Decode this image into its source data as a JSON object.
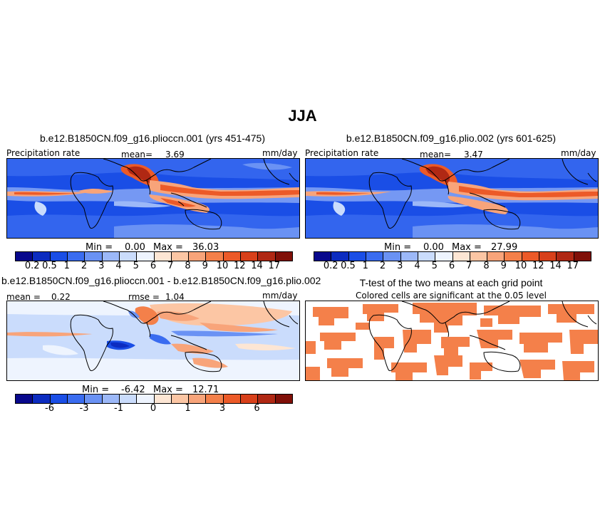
{
  "figure": {
    "title": "JJA",
    "units": "mm/day",
    "variable": "Precipitation rate"
  },
  "panels": [
    {
      "id": "case1",
      "title": "b.e12.B1850CN.f09_g16.plioccn.001 (yrs 451-475)",
      "left_label": "Precipitation rate",
      "mean_label": "mean=",
      "mean_value": "3.69",
      "units": "mm/day",
      "stats": {
        "min_label": "Min =",
        "min_value": "0.00",
        "max_label": "Max =",
        "max_value": "36.03"
      }
    },
    {
      "id": "case2",
      "title": "b.e12.B1850CN.f09_g16.plio.002 (yrs 601-625)",
      "left_label": "Precipitation rate",
      "mean_label": "mean=",
      "mean_value": "3.47",
      "units": "mm/day",
      "stats": {
        "min_label": "Min =",
        "min_value": "0.00",
        "max_label": "Max =",
        "max_value": "27.99"
      }
    },
    {
      "id": "diff",
      "title": "b.e12.B1850CN.f09_g16.plioccn.001 - b.e12.B1850CN.f09_g16.plio.002",
      "mean_label": "mean =",
      "mean_value": "0.22",
      "rmse_label": "rmse =",
      "rmse_value": "1.04",
      "units": "mm/day",
      "stats": {
        "min_label": "Min =",
        "min_value": "-6.42",
        "max_label": "Max =",
        "max_value": "12.71"
      }
    },
    {
      "id": "ttest",
      "title": "T-test of the two means at each grid point",
      "subtitle": "Colored cells are significant at the 0.05 level",
      "significant_color": "#f4804a"
    }
  ],
  "colorbars": {
    "precip": {
      "colors": [
        "#08088c",
        "#0c2cc0",
        "#1a4ee6",
        "#3a6cf0",
        "#6a92f4",
        "#9cb8f8",
        "#cadcfc",
        "#eef4fe",
        "#fde6d4",
        "#fcc6a4",
        "#f8a47a",
        "#f4804a",
        "#ec5a28",
        "#d8401a",
        "#b02814",
        "#801008"
      ],
      "ticks": [
        "0.2",
        "0.5",
        "1",
        "2",
        "3",
        "4",
        "5",
        "6",
        "7",
        "8",
        "9",
        "10",
        "12",
        "14",
        "17"
      ]
    },
    "diff": {
      "colors": [
        "#08088c",
        "#0c2cc0",
        "#1a4ee6",
        "#3a6cf0",
        "#6a92f4",
        "#9cb8f8",
        "#cadcfc",
        "#eef4fe",
        "#fde6d4",
        "#fcc6a4",
        "#f8a47a",
        "#f4804a",
        "#ec5a28",
        "#d8401a",
        "#b02814",
        "#801008"
      ],
      "ticks": [
        "-6",
        "-3",
        "-1",
        "0",
        "1",
        "3",
        "6"
      ],
      "tick_positions": [
        2,
        4,
        6,
        8,
        10,
        12,
        14
      ]
    }
  }
}
